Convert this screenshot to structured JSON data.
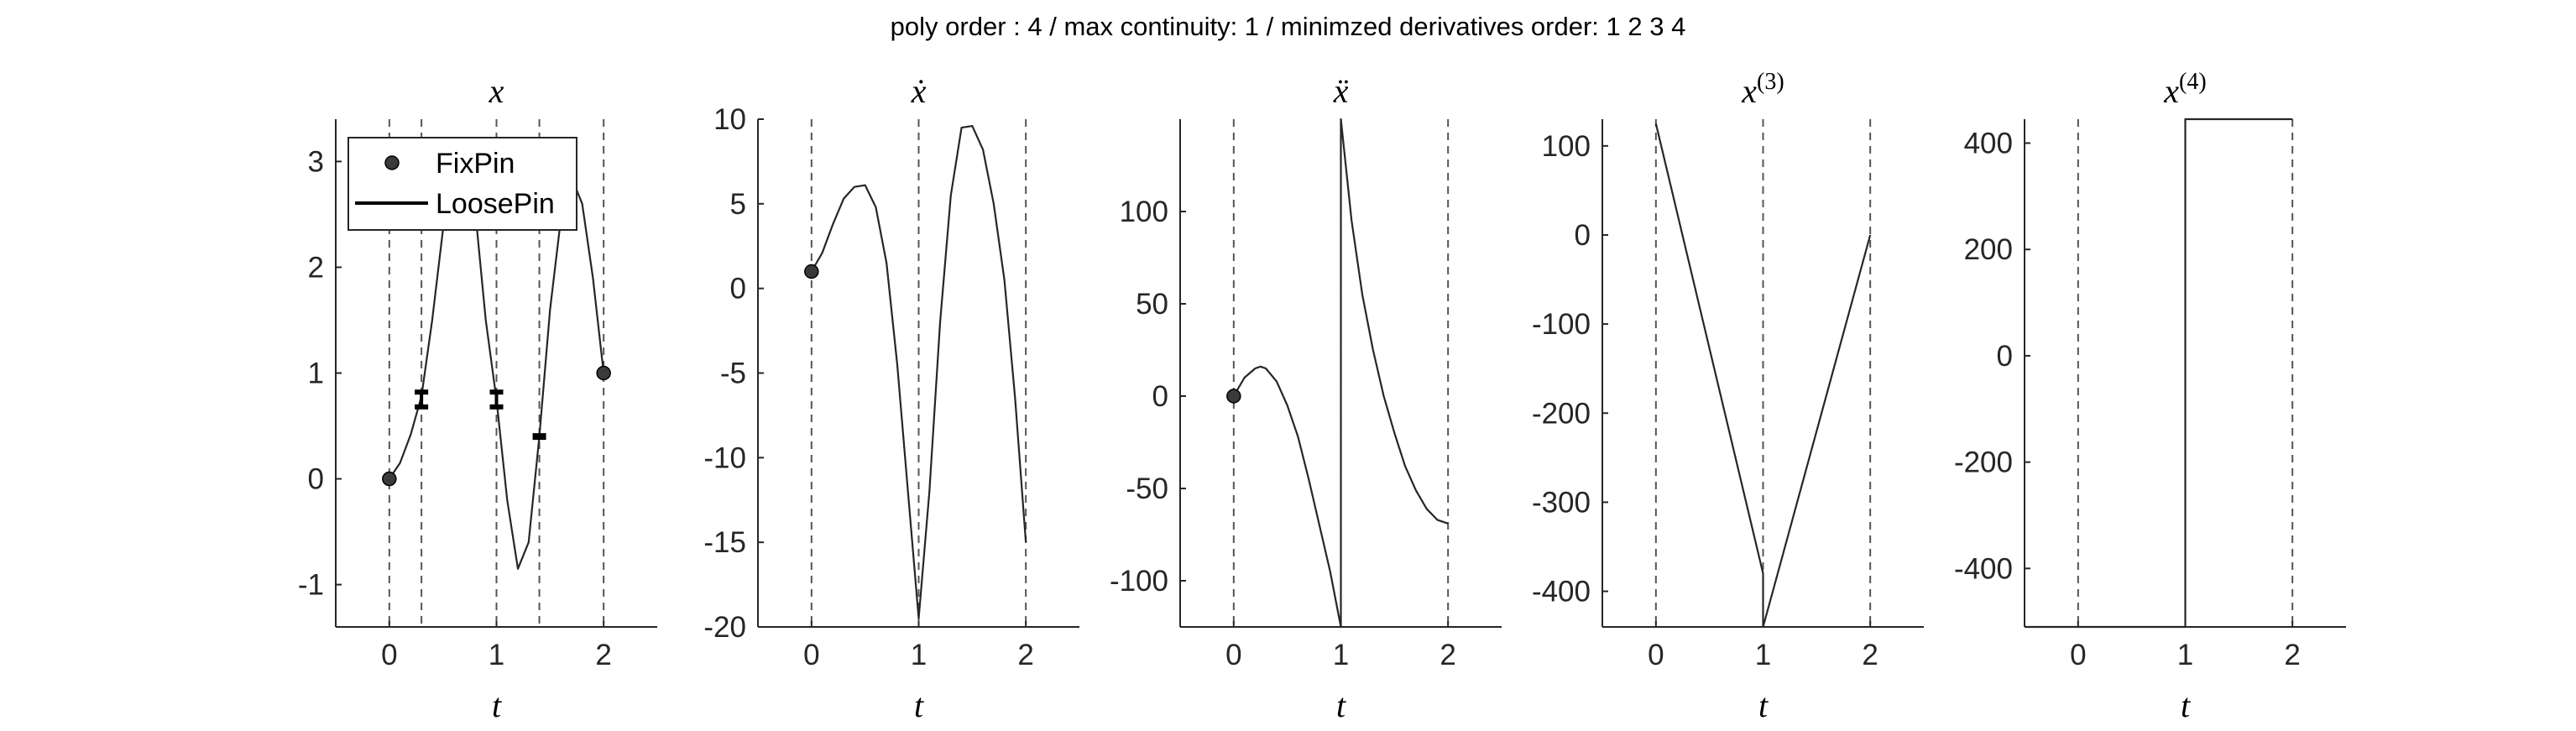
{
  "figure": {
    "suptitle": "poly order : 4 / max continuity: 1 / minimzed derivatives order: 1  2  3  4"
  },
  "chart_data": [
    {
      "type": "line",
      "title": "x",
      "xlabel": "t",
      "ylabel": "",
      "xlim": [
        -0.5,
        2.5
      ],
      "ylim": [
        -1.4,
        3.4
      ],
      "xticks": [
        "0",
        "1",
        "2"
      ],
      "yticks": [
        "-1",
        "0",
        "1",
        "2",
        "3"
      ],
      "knots": [
        0,
        0.3,
        1,
        1.4,
        2
      ],
      "legend": {
        "position": "top-left",
        "entries": [
          "FixPin",
          "LoosePin"
        ]
      },
      "series": [
        {
          "x": [
            0,
            0.1,
            0.2,
            0.3,
            0.4,
            0.5,
            0.6,
            0.7,
            0.8,
            0.9,
            1.0,
            1.1,
            1.2,
            1.3,
            1.4,
            1.5,
            1.6,
            1.7,
            1.8,
            1.9,
            2.0
          ],
          "y": [
            0,
            0.15,
            0.42,
            0.78,
            1.5,
            2.35,
            3.0,
            3.1,
            2.55,
            1.5,
            0.75,
            -0.2,
            -0.85,
            -0.6,
            0.4,
            1.6,
            2.45,
            2.85,
            2.6,
            1.9,
            1.0
          ]
        }
      ],
      "fix_pins": [
        {
          "x": 0,
          "y": 0
        },
        {
          "x": 2,
          "y": 1
        }
      ],
      "loose_pins": [
        {
          "x": 0.3,
          "y_low": 0.68,
          "y_high": 0.82
        },
        {
          "x": 1.0,
          "y_low": 0.68,
          "y_high": 0.82
        },
        {
          "x": 1.4,
          "y_low": 0.4,
          "y_high": 0.4
        }
      ]
    },
    {
      "type": "line",
      "title": "ẋ",
      "xlabel": "t",
      "ylabel": "",
      "xlim": [
        -0.5,
        2.5
      ],
      "ylim": [
        -20,
        10
      ],
      "xticks": [
        "0",
        "1",
        "2"
      ],
      "yticks": [
        "-20",
        "-15",
        "-10",
        "-5",
        "0",
        "5",
        "10"
      ],
      "knots": [
        0,
        1,
        2
      ],
      "series": [
        {
          "x": [
            0,
            0.1,
            0.2,
            0.3,
            0.4,
            0.5,
            0.6,
            0.7,
            0.8,
            0.9,
            1.0,
            1.1,
            1.2,
            1.3,
            1.4,
            1.5,
            1.6,
            1.7,
            1.8,
            1.9,
            2.0
          ],
          "y": [
            1,
            2.1,
            3.8,
            5.3,
            6.0,
            6.1,
            4.8,
            1.5,
            -4.5,
            -12.0,
            -19.5,
            -12.0,
            -2.0,
            5.5,
            9.5,
            9.6,
            8.2,
            5.0,
            0.5,
            -6.5,
            -15.0
          ]
        }
      ],
      "fix_pins": [
        {
          "x": 0,
          "y": 1
        }
      ]
    },
    {
      "type": "line",
      "title": "ẍ",
      "xlabel": "t",
      "ylabel": "",
      "xlim": [
        -0.5,
        2.5
      ],
      "ylim": [
        -125,
        150
      ],
      "xticks": [
        "0",
        "1",
        "2"
      ],
      "yticks": [
        "-100",
        "-50",
        "0",
        "50",
        "100"
      ],
      "knots": [
        0,
        1,
        2
      ],
      "series": [
        {
          "x": [
            0,
            0.1,
            0.2,
            0.25,
            0.3,
            0.4,
            0.5,
            0.6,
            0.7,
            0.8,
            0.9,
            1.0,
            1.0,
            1.1,
            1.2,
            1.3,
            1.4,
            1.5,
            1.6,
            1.7,
            1.8,
            1.9,
            2.0
          ],
          "y": [
            0,
            10,
            15,
            16,
            15,
            8,
            -5,
            -22,
            -45,
            -70,
            -95,
            -125,
            150,
            95,
            55,
            25,
            0,
            -20,
            -38,
            -51,
            -61,
            -67,
            -69
          ]
        }
      ],
      "fix_pins": [
        {
          "x": 0,
          "y": 0
        }
      ]
    },
    {
      "type": "line",
      "title": "x(3)",
      "title_base": "x",
      "title_sup": "(3)",
      "xlabel": "t",
      "ylabel": "",
      "xlim": [
        -0.5,
        2.5
      ],
      "ylim": [
        -440,
        130
      ],
      "xticks": [
        "0",
        "1",
        "2"
      ],
      "yticks": [
        "-400",
        "-300",
        "-200",
        "-100",
        "0",
        "100"
      ],
      "knots": [
        0,
        1,
        2
      ],
      "series": [
        {
          "x": [
            0,
            1.0,
            1.0,
            2.0
          ],
          "y": [
            125,
            -380,
            -440,
            0
          ]
        }
      ]
    },
    {
      "type": "line",
      "title": "x(4)",
      "title_base": "x",
      "title_sup": "(4)",
      "xlabel": "t",
      "ylabel": "",
      "xlim": [
        -0.5,
        2.5
      ],
      "ylim": [
        -510,
        445
      ],
      "xticks": [
        "0",
        "1",
        "2"
      ],
      "yticks": [
        "-400",
        "-200",
        "0",
        "200",
        "400"
      ],
      "knots": [
        0,
        1,
        2
      ],
      "series": [
        {
          "x": [
            -0.5,
            1.0,
            1.0,
            2.0
          ],
          "y": [
            -510,
            -510,
            445,
            445
          ]
        }
      ]
    }
  ]
}
